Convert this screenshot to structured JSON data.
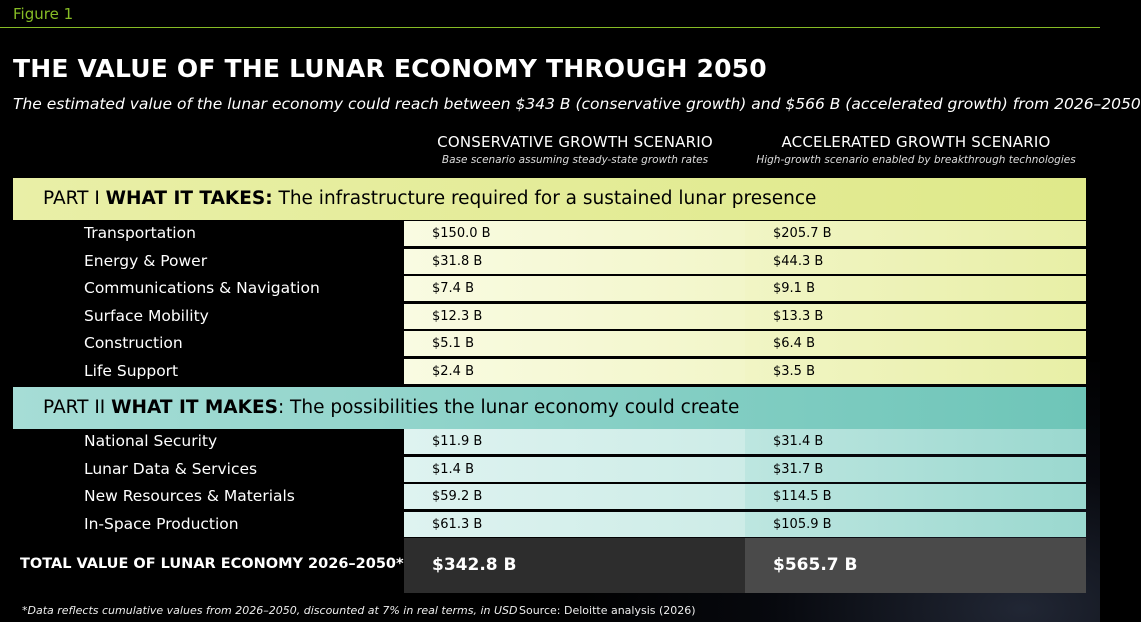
{
  "figure_label": "Figure 1",
  "title": "THE VALUE OF THE LUNAR ECONOMY THROUGH 2050",
  "subtitle": "The estimated value of the lunar economy could reach between $343 B (conservative growth) and $566 B (accelerated growth) from 2026–2050",
  "columns": [
    {
      "heading": "CONSERVATIVE GROWTH SCENARIO",
      "description": "Base scenario assuming steady-state growth rates"
    },
    {
      "heading": "ACCELERATED GROWTH SCENARIO",
      "description": "High-growth scenario enabled by breakthrough technologies"
    }
  ],
  "parts": [
    {
      "prefix": "PART I ",
      "bold": "WHAT IT TAKES:",
      "rest": " The infrastructure required for a sustained lunar presence",
      "color": "#dfe98a"
    },
    {
      "prefix": "PART II ",
      "bold": "WHAT IT MAKES",
      "rest": ": The possibilities the lunar economy could create",
      "color": "#6ec5b8"
    }
  ],
  "chart_data": {
    "type": "table",
    "title": "THE VALUE OF THE LUNAR ECONOMY THROUGH 2050",
    "columns": [
      "CONSERVATIVE GROWTH SCENARIO",
      "ACCELERATED GROWTH SCENARIO"
    ],
    "sections": [
      {
        "name": "PART I WHAT IT TAKES",
        "rows": [
          {
            "label": "Transportation",
            "values": [
              "$150.0 B",
              "$205.7 B"
            ]
          },
          {
            "label": "Energy & Power",
            "values": [
              "$31.8 B",
              "$44.3 B"
            ]
          },
          {
            "label": "Communications & Navigation",
            "values": [
              "$7.4 B",
              "$9.1 B"
            ]
          },
          {
            "label": "Surface Mobility",
            "values": [
              "$12.3 B",
              "$13.3 B"
            ]
          },
          {
            "label": "Construction",
            "values": [
              "$5.1 B",
              "$6.4 B"
            ]
          },
          {
            "label": "Life Support",
            "values": [
              "$2.4 B",
              "$3.5 B"
            ]
          }
        ]
      },
      {
        "name": "PART II WHAT IT MAKES",
        "rows": [
          {
            "label": "National Security",
            "values": [
              "$11.9 B",
              "$31.4 B"
            ]
          },
          {
            "label": "Lunar Data & Services",
            "values": [
              "$1.4 B",
              "$31.7 B"
            ]
          },
          {
            "label": "New Resources & Materials",
            "values": [
              "$59.2 B",
              "$114.5 B"
            ]
          },
          {
            "label": "In-Space Production",
            "values": [
              "$61.3 B",
              "$105.9 B"
            ]
          }
        ]
      }
    ],
    "total": {
      "label": "TOTAL VALUE OF LUNAR ECONOMY 2026–2050*",
      "values": [
        "$342.8 B",
        "$565.7 B"
      ]
    }
  },
  "footnote": "*Data reflects cumulative values from 2026–2050, discounted at 7% in real terms, in USD",
  "source": "Source: Deloitte analysis (2026)"
}
